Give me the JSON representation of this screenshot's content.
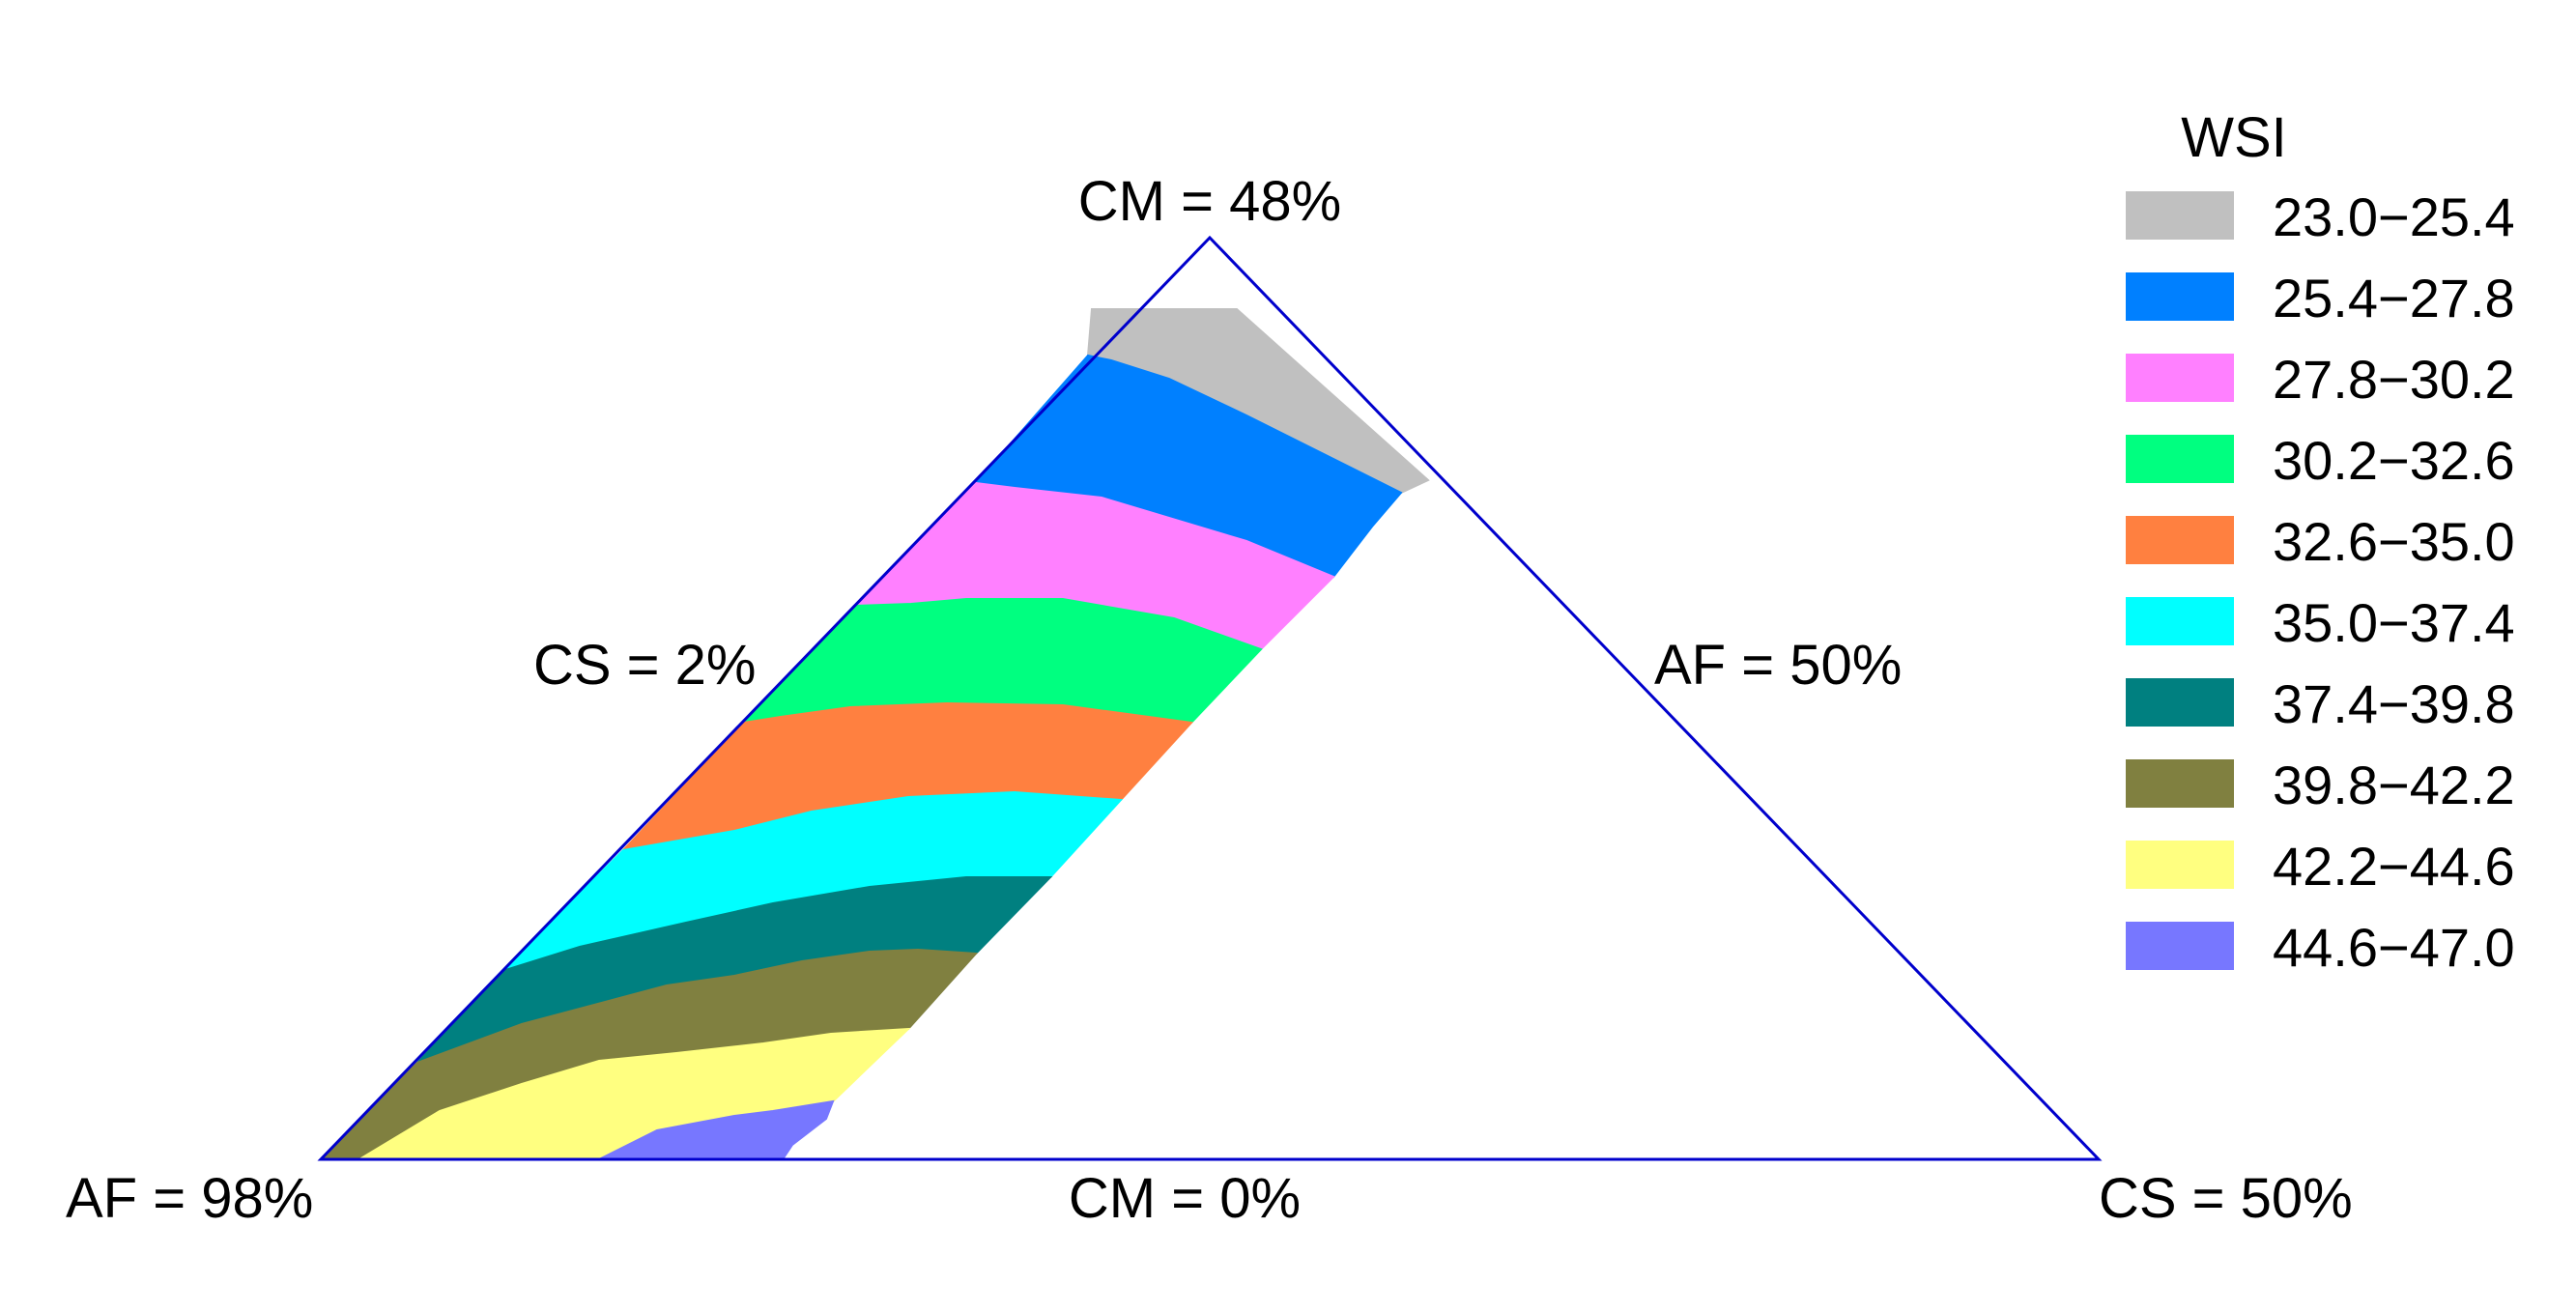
{
  "chart_data": {
    "type": "ternary-contour",
    "legend_title": "WSI",
    "legend_placement": "right",
    "vertices": {
      "top": "CM = 48%",
      "left": "AF = 98%",
      "right": "CS = 50%"
    },
    "edge_labels": {
      "left": "CS = 2%",
      "right": "AF = 50%",
      "bottom": "CM = 0%"
    },
    "components": [
      "CM",
      "AF",
      "CS"
    ],
    "ranges": {
      "CM": [
        0,
        48
      ],
      "AF": [
        50,
        98
      ],
      "CS": [
        2,
        50
      ]
    },
    "levels": [
      {
        "label": "23.0−25.4",
        "min": 23.0,
        "max": 25.4,
        "color": "#C0C0C0"
      },
      {
        "label": "25.4−27.8",
        "min": 25.4,
        "max": 27.8,
        "color": "#0080FF"
      },
      {
        "label": "27.8−30.2",
        "min": 27.8,
        "max": 30.2,
        "color": "#FF80FF"
      },
      {
        "label": "30.2−32.6",
        "min": 30.2,
        "max": 32.6,
        "color": "#00FF80"
      },
      {
        "label": "32.6−35.0",
        "min": 32.6,
        "max": 35.0,
        "color": "#FF8040"
      },
      {
        "label": "35.0−37.4",
        "min": 35.0,
        "max": 37.4,
        "color": "#00FFFF"
      },
      {
        "label": "37.4−39.8",
        "min": 37.4,
        "max": 39.8,
        "color": "#008080"
      },
      {
        "label": "39.8−42.2",
        "min": 39.8,
        "max": 42.2,
        "color": "#808040"
      },
      {
        "label": "42.2−44.6",
        "min": 42.2,
        "max": 44.6,
        "color": "#FFFF80"
      },
      {
        "label": "44.6−47.0",
        "min": 44.6,
        "max": 47.0,
        "color": "#7777FF"
      }
    ],
    "frame_color": "#0000CC"
  }
}
